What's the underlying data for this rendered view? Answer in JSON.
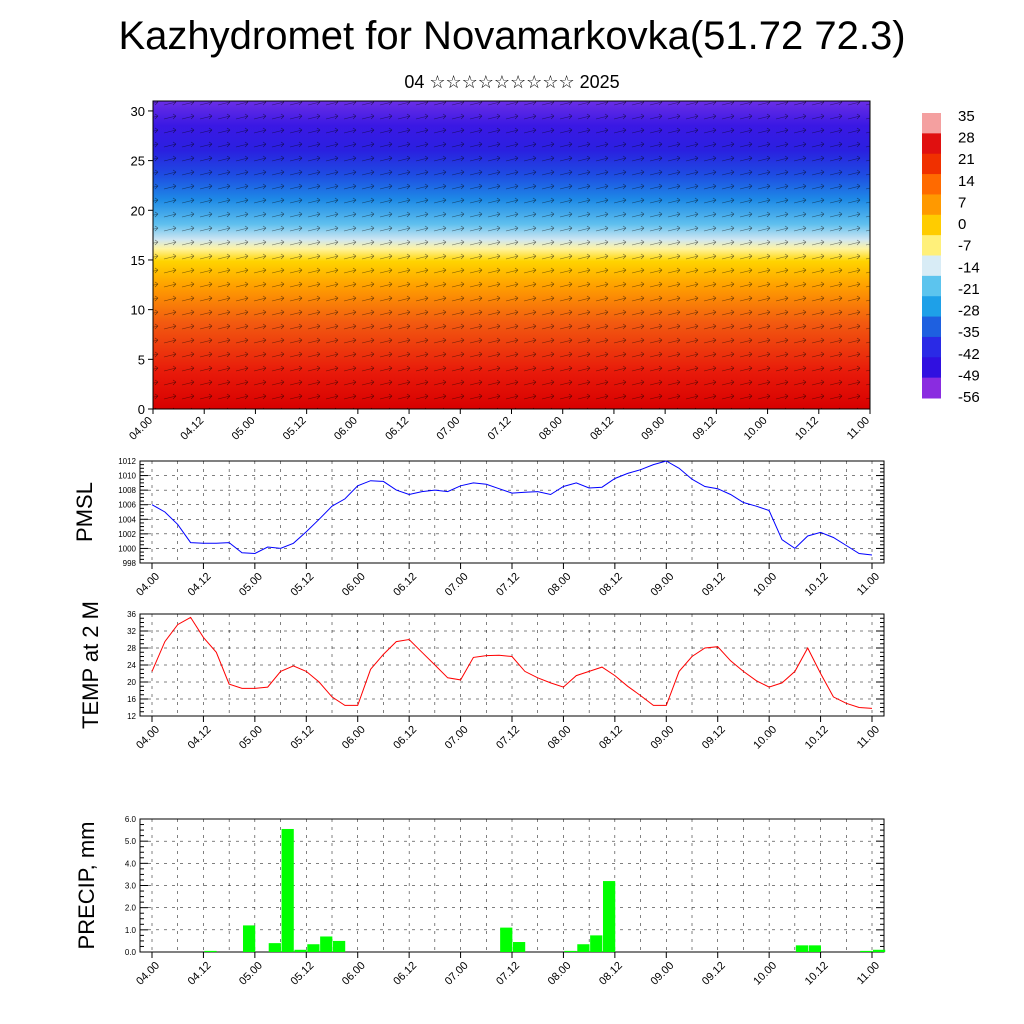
{
  "header": {
    "title": "Kazhydromet for Novamarkovka(51.72 72.3)",
    "subtitle": "04 ☆☆☆☆☆☆☆☆☆ 2025"
  },
  "chart_data": [
    {
      "type": "heatmap",
      "title": "Kazhydromet for Novamarkovka(51.72 72.3)",
      "subtitle": "04 ☆☆☆☆☆☆☆☆☆ 2025",
      "x_ticks": [
        "04.00",
        "04.12",
        "05.00",
        "05.12",
        "06.00",
        "06.12",
        "07.00",
        "07.12",
        "08.00",
        "08.12",
        "09.00",
        "09.12",
        "10.00",
        "10.12",
        "11.00"
      ],
      "y_ticks": [
        "0",
        "5",
        "10",
        "15",
        "20",
        "25",
        "30"
      ],
      "ylim": [
        0,
        31
      ],
      "colorbar_labels": [
        "35",
        "28",
        "21",
        "14",
        "7",
        "0",
        "-7",
        "-14",
        "-21",
        "-28",
        "-35",
        "-42",
        "-49",
        "-56"
      ],
      "colorbar_colors": [
        "#f4a0a0",
        "#e01010",
        "#f03000",
        "#ff6a00",
        "#ff9900",
        "#ffcc00",
        "#fff07a",
        "#d8ecf6",
        "#5cc4ee",
        "#1ea0e8",
        "#1e60e0",
        "#2a2ae6",
        "#3010e0",
        "#8a2ce0"
      ],
      "description_colors": {
        "low_levels": "#e41a1a",
        "mid_levels": "#ffd000",
        "upper_levels": "#1a3af0"
      }
    },
    {
      "type": "line",
      "ylabel": "PMSL",
      "x_ticks": [
        "04.00",
        "04.12",
        "05.00",
        "05.12",
        "06.00",
        "06.12",
        "07.00",
        "07.12",
        "08.00",
        "08.12",
        "09.00",
        "09.12",
        "10.00",
        "10.12",
        "11.00"
      ],
      "y_ticks": [
        "998",
        "1000",
        "1002",
        "1004",
        "1006",
        "1008",
        "1010",
        "1012"
      ],
      "ylim": [
        998,
        1012
      ],
      "color": "#0000ff",
      "x": [
        0,
        3,
        6,
        9,
        12,
        15,
        18,
        21,
        24,
        27,
        30,
        33,
        36,
        39,
        42,
        45,
        48,
        51,
        54,
        57,
        60,
        63,
        66,
        69,
        72,
        75,
        78,
        81,
        84,
        87,
        90,
        93,
        96,
        99,
        102,
        105,
        108,
        111,
        114,
        117,
        120,
        123,
        126,
        129,
        132,
        135,
        138,
        141,
        144,
        147,
        150,
        153,
        156,
        159,
        162,
        165,
        168
      ],
      "values": [
        1006,
        1005,
        1003.3,
        1000.8,
        1000.7,
        1000.7,
        1000.8,
        999.4,
        999.3,
        1000.2,
        1000.0,
        1000.7,
        1002.3,
        1004.0,
        1005.8,
        1006.8,
        1008.6,
        1009.3,
        1009.2,
        1008.0,
        1007.4,
        1007.8,
        1008.0,
        1007.8,
        1008.6,
        1009.0,
        1008.8,
        1008.2,
        1007.6,
        1007.7,
        1007.8,
        1007.4,
        1008.5,
        1009.0,
        1008.3,
        1008.4,
        1009.6,
        1010.3,
        1010.8,
        1011.5,
        1012.0,
        1011.0,
        1009.5,
        1008.5,
        1008.2,
        1007.4,
        1006.3,
        1005.8,
        1005.2,
        1001.2,
        1000.0,
        1001.7,
        1002.2,
        1001.5,
        1000.4,
        999.3,
        999.1
      ]
    },
    {
      "type": "line",
      "ylabel": "TEMP at 2 M",
      "x_ticks": [
        "04.00",
        "04.12",
        "05.00",
        "05.12",
        "06.00",
        "06.12",
        "07.00",
        "07.12",
        "08.00",
        "08.12",
        "09.00",
        "09.12",
        "10.00",
        "10.12",
        "11.00"
      ],
      "y_ticks": [
        "12",
        "16",
        "20",
        "24",
        "28",
        "32",
        "36"
      ],
      "ylim": [
        12,
        36
      ],
      "color": "#ff0000",
      "x": [
        0,
        3,
        6,
        9,
        12,
        15,
        18,
        21,
        24,
        27,
        30,
        33,
        36,
        39,
        42,
        45,
        48,
        51,
        54,
        57,
        60,
        63,
        66,
        69,
        72,
        75,
        78,
        81,
        84,
        87,
        90,
        93,
        96,
        99,
        102,
        105,
        108,
        111,
        114,
        117,
        120,
        123,
        126,
        129,
        132,
        135,
        138,
        141,
        144,
        147,
        150,
        153,
        156,
        159,
        162,
        165,
        168
      ],
      "values": [
        22.5,
        29.5,
        33.5,
        35.2,
        30.5,
        27.0,
        19.5,
        18.5,
        18.5,
        18.8,
        22.5,
        23.8,
        22.5,
        20.0,
        16.5,
        14.5,
        14.5,
        23.0,
        26.5,
        29.5,
        30.0,
        27.0,
        24.0,
        21.0,
        20.5,
        25.8,
        26.2,
        26.3,
        26.0,
        22.5,
        21.0,
        19.8,
        18.8,
        21.5,
        22.5,
        23.5,
        21.5,
        19.0,
        16.8,
        14.5,
        14.5,
        22.5,
        26.0,
        28.0,
        28.3,
        25.0,
        22.5,
        20.3,
        18.8,
        19.8,
        22.5,
        28.0,
        22.0,
        16.5,
        15.0,
        14.0,
        13.8
      ]
    },
    {
      "type": "bar",
      "ylabel": "PRECIP, mm",
      "x_ticks": [
        "04.00",
        "04.12",
        "05.00",
        "05.12",
        "06.00",
        "06.12",
        "07.00",
        "07.12",
        "08.00",
        "08.12",
        "09.00",
        "09.12",
        "10.00",
        "10.12",
        "11.00"
      ],
      "y_ticks": [
        "0.0",
        "1.0",
        "2.0",
        "3.0",
        "4.0",
        "5.0",
        "6.0"
      ],
      "ylim": [
        0,
        6
      ],
      "color": "#00ff00",
      "x": [
        0,
        3,
        6,
        9,
        12,
        15,
        18,
        21,
        24,
        27,
        30,
        33,
        36,
        39,
        42,
        45,
        48,
        51,
        54,
        57,
        60,
        63,
        66,
        69,
        72,
        75,
        78,
        81,
        84,
        87,
        90,
        93,
        96,
        99,
        102,
        105,
        108,
        111,
        114,
        117,
        120,
        123,
        126,
        129,
        132,
        135,
        138,
        141,
        144,
        147,
        150,
        153,
        156,
        159,
        162,
        165,
        168
      ],
      "values": [
        0,
        0,
        0,
        0,
        0.05,
        0,
        0,
        1.2,
        0,
        0.4,
        5.55,
        0.1,
        0.35,
        0.7,
        0.5,
        0,
        0,
        0,
        0,
        0,
        0,
        0,
        0,
        0,
        0,
        0,
        0,
        1.1,
        0.45,
        0,
        0,
        0,
        0.05,
        0.35,
        0.75,
        3.2,
        0,
        0,
        0,
        0,
        0,
        0,
        0,
        0,
        0,
        0,
        0,
        0,
        0,
        0,
        0.3,
        0.3,
        0,
        0,
        0,
        0.05,
        0.1
      ]
    }
  ]
}
